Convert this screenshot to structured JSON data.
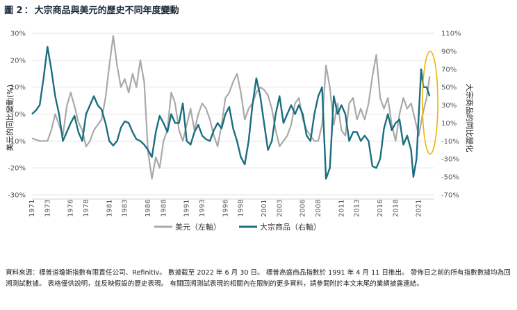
{
  "figure": {
    "label": "圖 2",
    "separator": "：",
    "title": "大宗商品與美元的歷史不同年度變動"
  },
  "chart_data": {
    "type": "line",
    "title": "大宗商品與美元的歷史不同年度變動",
    "x_label": "",
    "y_left_label": "美元的同比變動(%)",
    "y_right_label": "大宗商品的同比變化",
    "y_left_ticks": [
      "30%",
      "20%",
      "10%",
      "0%",
      "-10%",
      "-20%",
      "-30%"
    ],
    "y_right_ticks": [
      "110%",
      "90%",
      "70%",
      "50%",
      "30%",
      "10%",
      "-10%",
      "-30%",
      "-50%",
      "-70%"
    ],
    "y_left_range": [
      -30,
      30
    ],
    "y_right_range": [
      -70,
      110
    ],
    "x_range": [
      1971,
      2023
    ],
    "x_tick_labels": [
      "1971",
      "1973",
      "1976",
      "1978",
      "1981",
      "1983",
      "1986",
      "1988",
      "1991",
      "1993",
      "1996",
      "1998",
      "2001",
      "2003",
      "2006",
      "2008",
      "2011",
      "2013",
      "2016",
      "2018",
      "2021"
    ],
    "grid": "horizontal",
    "legend_position": "bottom",
    "series": [
      {
        "name": "美元（左軸）",
        "axis": "left",
        "color": "#a9a9a9",
        "points": [
          [
            1971.0,
            -9
          ],
          [
            1972.0,
            -10
          ],
          [
            1973.0,
            -10
          ],
          [
            1973.5,
            -6
          ],
          [
            1974.0,
            0
          ],
          [
            1974.5,
            -4
          ],
          [
            1975.0,
            -8
          ],
          [
            1975.5,
            3
          ],
          [
            1976.0,
            8
          ],
          [
            1976.5,
            3
          ],
          [
            1977.0,
            -3
          ],
          [
            1977.5,
            -6
          ],
          [
            1978.0,
            -12
          ],
          [
            1978.5,
            -10
          ],
          [
            1979.0,
            -6
          ],
          [
            1979.5,
            -4
          ],
          [
            1980.0,
            -2
          ],
          [
            1980.5,
            6
          ],
          [
            1981.0,
            18
          ],
          [
            1981.5,
            29
          ],
          [
            1982.0,
            18
          ],
          [
            1982.5,
            10
          ],
          [
            1983.0,
            13
          ],
          [
            1983.5,
            8
          ],
          [
            1984.0,
            15
          ],
          [
            1984.5,
            10
          ],
          [
            1985.0,
            20
          ],
          [
            1985.5,
            12
          ],
          [
            1986.0,
            -14
          ],
          [
            1986.5,
            -24
          ],
          [
            1987.0,
            -16
          ],
          [
            1987.5,
            -20
          ],
          [
            1988.0,
            -10
          ],
          [
            1988.5,
            -6
          ],
          [
            1989.0,
            8
          ],
          [
            1989.5,
            4
          ],
          [
            1990.0,
            -6
          ],
          [
            1990.5,
            -10
          ],
          [
            1991.0,
            -4
          ],
          [
            1991.5,
            2
          ],
          [
            1992.0,
            -6
          ],
          [
            1992.5,
            0
          ],
          [
            1993.0,
            4
          ],
          [
            1993.5,
            2
          ],
          [
            1994.0,
            -2
          ],
          [
            1994.5,
            -8
          ],
          [
            1995.0,
            -12
          ],
          [
            1995.5,
            -4
          ],
          [
            1996.0,
            6
          ],
          [
            1996.5,
            8
          ],
          [
            1997.0,
            12
          ],
          [
            1997.5,
            15
          ],
          [
            1998.0,
            8
          ],
          [
            1998.5,
            -2
          ],
          [
            1999.0,
            2
          ],
          [
            1999.5,
            4
          ],
          [
            2000.0,
            8
          ],
          [
            2000.5,
            10
          ],
          [
            2001.0,
            9
          ],
          [
            2001.5,
            7
          ],
          [
            2002.0,
            2
          ],
          [
            2002.5,
            -6
          ],
          [
            2003.0,
            -12
          ],
          [
            2003.5,
            -10
          ],
          [
            2004.0,
            -8
          ],
          [
            2004.5,
            -4
          ],
          [
            2005.0,
            4
          ],
          [
            2005.5,
            6
          ],
          [
            2006.0,
            -2
          ],
          [
            2006.5,
            -6
          ],
          [
            2007.0,
            -8
          ],
          [
            2007.5,
            -10
          ],
          [
            2008.0,
            -10
          ],
          [
            2008.5,
            -4
          ],
          [
            2009.0,
            18
          ],
          [
            2009.5,
            10
          ],
          [
            2010.0,
            -4
          ],
          [
            2010.5,
            4
          ],
          [
            2011.0,
            -6
          ],
          [
            2011.5,
            -8
          ],
          [
            2012.0,
            4
          ],
          [
            2012.5,
            6
          ],
          [
            2013.0,
            -2
          ],
          [
            2013.5,
            2
          ],
          [
            2014.0,
            -2
          ],
          [
            2014.5,
            4
          ],
          [
            2015.0,
            14
          ],
          [
            2015.5,
            22
          ],
          [
            2016.0,
            6
          ],
          [
            2016.5,
            2
          ],
          [
            2017.0,
            6
          ],
          [
            2017.5,
            -4
          ],
          [
            2018.0,
            -10
          ],
          [
            2018.5,
            0
          ],
          [
            2019.0,
            6
          ],
          [
            2019.5,
            2
          ],
          [
            2020.0,
            4
          ],
          [
            2020.5,
            -2
          ],
          [
            2021.0,
            -8
          ],
          [
            2021.5,
            0
          ],
          [
            2022.0,
            6
          ],
          [
            2022.4,
            14
          ]
        ]
      },
      {
        "name": "大宗商品（右軸）",
        "axis": "right",
        "color": "#1a6e80",
        "points": [
          [
            1971.0,
            20
          ],
          [
            1971.5,
            24
          ],
          [
            1972.0,
            30
          ],
          [
            1972.5,
            60
          ],
          [
            1973.0,
            95
          ],
          [
            1973.5,
            70
          ],
          [
            1974.0,
            40
          ],
          [
            1974.5,
            20
          ],
          [
            1975.0,
            -10
          ],
          [
            1975.5,
            0
          ],
          [
            1976.0,
            10
          ],
          [
            1976.5,
            18
          ],
          [
            1977.0,
            0
          ],
          [
            1977.5,
            -10
          ],
          [
            1978.0,
            20
          ],
          [
            1978.5,
            30
          ],
          [
            1979.0,
            40
          ],
          [
            1979.5,
            30
          ],
          [
            1980.0,
            25
          ],
          [
            1980.5,
            10
          ],
          [
            1981.0,
            -10
          ],
          [
            1981.5,
            -15
          ],
          [
            1982.0,
            -10
          ],
          [
            1982.5,
            5
          ],
          [
            1983.0,
            12
          ],
          [
            1983.5,
            10
          ],
          [
            1984.0,
            0
          ],
          [
            1984.5,
            -8
          ],
          [
            1985.0,
            -10
          ],
          [
            1985.5,
            -14
          ],
          [
            1986.0,
            -20
          ],
          [
            1986.5,
            -28
          ],
          [
            1987.0,
            0
          ],
          [
            1987.5,
            18
          ],
          [
            1988.0,
            10
          ],
          [
            1988.5,
            0
          ],
          [
            1989.0,
            20
          ],
          [
            1989.5,
            10
          ],
          [
            1990.0,
            10
          ],
          [
            1990.5,
            32
          ],
          [
            1991.0,
            -10
          ],
          [
            1991.5,
            -14
          ],
          [
            1992.0,
            0
          ],
          [
            1992.5,
            8
          ],
          [
            1993.0,
            -4
          ],
          [
            1993.5,
            -8
          ],
          [
            1994.0,
            -10
          ],
          [
            1994.5,
            2
          ],
          [
            1995.0,
            10
          ],
          [
            1995.5,
            4
          ],
          [
            1996.0,
            20
          ],
          [
            1996.5,
            28
          ],
          [
            1997.0,
            4
          ],
          [
            1997.5,
            -10
          ],
          [
            1998.0,
            -28
          ],
          [
            1998.5,
            -36
          ],
          [
            1999.0,
            -10
          ],
          [
            1999.5,
            30
          ],
          [
            2000.0,
            60
          ],
          [
            2000.5,
            40
          ],
          [
            2001.0,
            10
          ],
          [
            2001.5,
            -20
          ],
          [
            2002.0,
            -10
          ],
          [
            2002.5,
            20
          ],
          [
            2003.0,
            40
          ],
          [
            2003.5,
            10
          ],
          [
            2004.0,
            20
          ],
          [
            2004.5,
            30
          ],
          [
            2005.0,
            20
          ],
          [
            2005.5,
            30
          ],
          [
            2006.0,
            20
          ],
          [
            2006.5,
            -4
          ],
          [
            2007.0,
            -10
          ],
          [
            2007.5,
            20
          ],
          [
            2008.0,
            40
          ],
          [
            2008.5,
            50
          ],
          [
            2009.0,
            -52
          ],
          [
            2009.5,
            -40
          ],
          [
            2010.0,
            40
          ],
          [
            2010.5,
            20
          ],
          [
            2011.0,
            30
          ],
          [
            2011.5,
            20
          ],
          [
            2012.0,
            -10
          ],
          [
            2012.5,
            0
          ],
          [
            2013.0,
            0
          ],
          [
            2013.5,
            -10
          ],
          [
            2014.0,
            -4
          ],
          [
            2014.5,
            -10
          ],
          [
            2015.0,
            -38
          ],
          [
            2015.5,
            -40
          ],
          [
            2016.0,
            -30
          ],
          [
            2016.5,
            4
          ],
          [
            2017.0,
            20
          ],
          [
            2017.5,
            2
          ],
          [
            2018.0,
            10
          ],
          [
            2018.5,
            14
          ],
          [
            2019.0,
            -14
          ],
          [
            2019.5,
            -4
          ],
          [
            2020.0,
            -20
          ],
          [
            2020.3,
            -50
          ],
          [
            2020.7,
            -30
          ],
          [
            2021.0,
            20
          ],
          [
            2021.3,
            70
          ],
          [
            2021.6,
            50
          ],
          [
            2022.0,
            50
          ],
          [
            2022.4,
            40
          ]
        ]
      }
    ]
  },
  "footer": {
    "text": "資料來源：標普道瓊斯指數有限責任公司、Refinitiv。 數據截至 2022 年 6 月 30 日。 標普高盛商品指數於 1991 年 4 月 11 日推出。 發佈日之前的所有指數數據均為回溯測試數據。 表格僅供說明，並反映假設的歷史表現。 有關回溯測試表現的相關內在限制的更多資料，請參閱附於本文末尾的業績披露連結。"
  }
}
